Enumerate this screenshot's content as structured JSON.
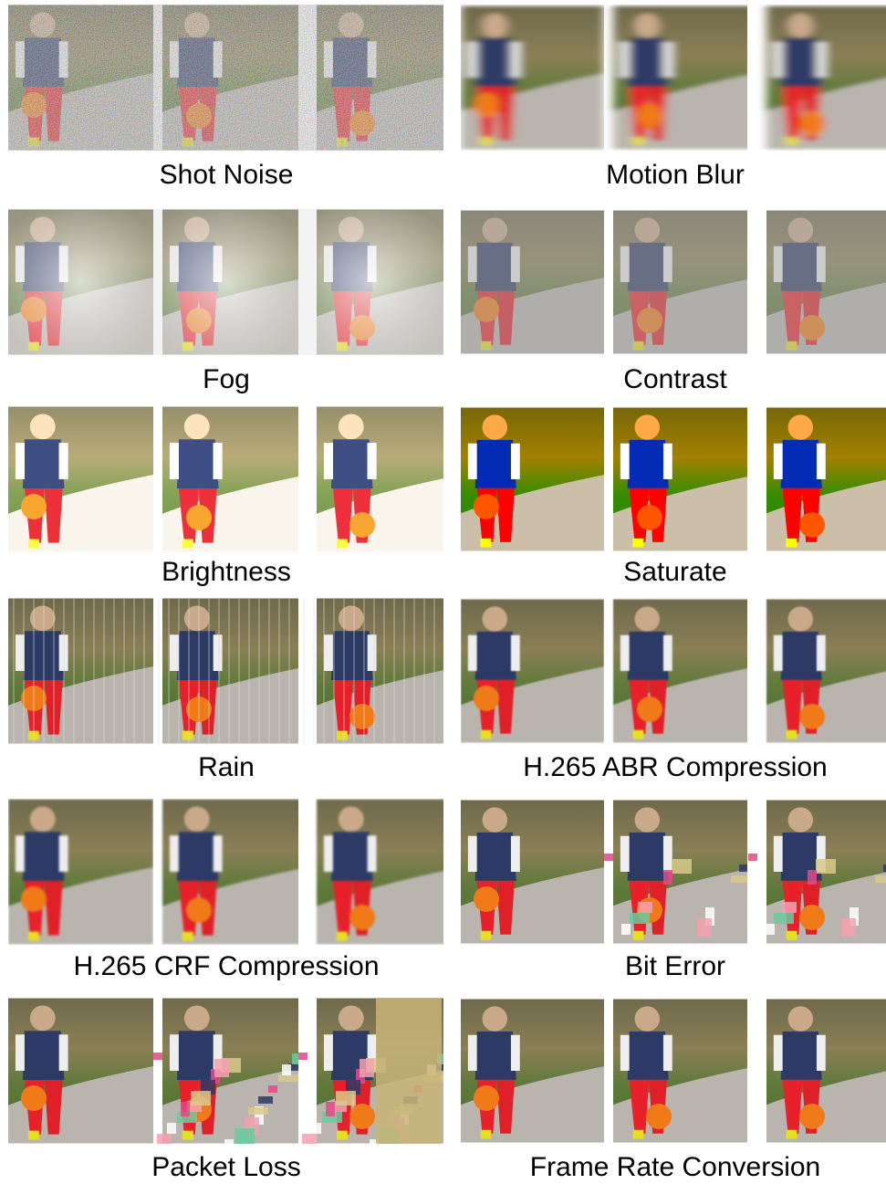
{
  "panels": [
    {
      "label": "Shot Noise"
    },
    {
      "label": "Motion Blur"
    },
    {
      "label": "Fog"
    },
    {
      "label": "Contrast"
    },
    {
      "label": "Brightness"
    },
    {
      "label": "Saturate"
    },
    {
      "label": "Rain"
    },
    {
      "label": "H.265 ABR Compression"
    },
    {
      "label": "H.265 CRF Compression"
    },
    {
      "label": "Bit Error"
    },
    {
      "label": "Packet Loss"
    },
    {
      "label": "Frame Rate Conversion"
    }
  ]
}
